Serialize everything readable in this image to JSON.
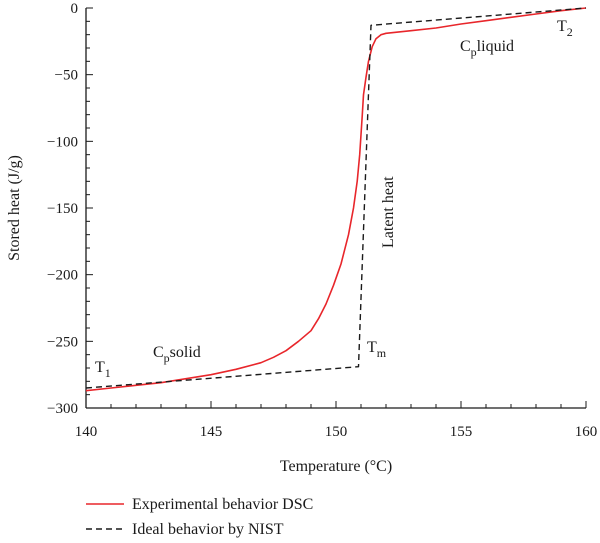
{
  "chart_data": {
    "type": "line",
    "xlabel": "Temperature (°C)",
    "ylabel": "Stored heat (J/g)",
    "xlim": [
      140,
      160
    ],
    "ylim": [
      -300,
      0
    ],
    "xticks": [
      140,
      145,
      150,
      155,
      160
    ],
    "yticks": [
      0,
      -50,
      -100,
      -150,
      -200,
      -250,
      -300
    ],
    "x_minor_step": 1,
    "y_minor_step": 10,
    "grid": false,
    "legend_position": "bottom",
    "series": [
      {
        "name": "Experimental behavior DSC",
        "color": "#e8262b",
        "dash": "solid",
        "x": [
          140,
          141,
          142,
          143,
          144,
          145,
          146,
          147,
          147.5,
          148,
          148.5,
          149,
          149.3,
          149.6,
          149.9,
          150.2,
          150.5,
          150.7,
          150.85,
          150.95,
          151.0,
          151.05,
          151.1,
          151.2,
          151.3,
          151.45,
          151.6,
          151.8,
          152.0,
          153,
          154,
          155,
          156,
          157,
          158,
          159,
          160
        ],
        "y": [
          -287,
          -285,
          -283,
          -281,
          -278,
          -275,
          -271,
          -266,
          -262,
          -257,
          -250,
          -242,
          -233,
          -222,
          -208,
          -192,
          -170,
          -150,
          -130,
          -110,
          -95,
          -80,
          -65,
          -52,
          -40,
          -29,
          -23,
          -20,
          -19,
          -17,
          -15,
          -12,
          -9.5,
          -7,
          -4.5,
          -2,
          0
        ]
      },
      {
        "name": "Ideal behavior by NIST",
        "color": "#1a1a1a",
        "dash": "dashed",
        "x": [
          140,
          150.9,
          151.4,
          160
        ],
        "y": [
          -285,
          -269,
          -13,
          0
        ]
      }
    ],
    "annotations": [
      {
        "text": "T",
        "sub": "1"
      },
      {
        "text": "C",
        "sub": "p",
        "tail": "solid"
      },
      {
        "text": "T",
        "sub": "m"
      },
      {
        "text": "Latent heat"
      },
      {
        "text": "C",
        "sub": "p",
        "tail": "liquid"
      },
      {
        "text": "T",
        "sub": "2"
      }
    ]
  }
}
